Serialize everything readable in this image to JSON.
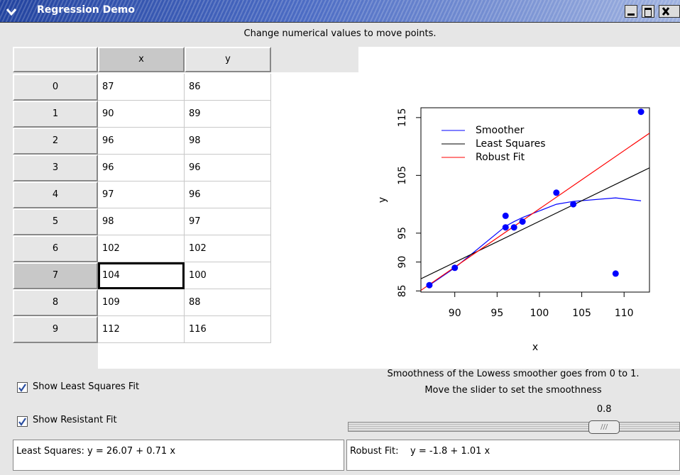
{
  "window_title": "Regression Demo",
  "instructions": "Change numerical values to move points.",
  "table": {
    "columns": [
      "x",
      "y"
    ],
    "rows": [
      [
        0,
        87,
        86
      ],
      [
        1,
        90,
        89
      ],
      [
        2,
        96,
        98
      ],
      [
        3,
        96,
        96
      ],
      [
        4,
        97,
        96
      ],
      [
        5,
        98,
        97
      ],
      [
        6,
        102,
        102
      ],
      [
        7,
        104,
        100
      ],
      [
        8,
        109,
        88
      ],
      [
        9,
        112,
        116
      ]
    ],
    "selected_cell": [
      7,
      1
    ]
  },
  "chart_data": {
    "type": "scatter",
    "xlabel": "x",
    "ylabel": "y",
    "point_color": "#0000ff",
    "xlim": [
      86,
      113
    ],
    "ylim": [
      84.8,
      116.7
    ],
    "xticks": [
      90,
      95,
      100,
      105,
      110
    ],
    "yticks": [
      85,
      90,
      95,
      105,
      115
    ],
    "legend": "upper left",
    "series": [
      {
        "name": "Smoother",
        "color": "#0000ff",
        "x": [
          87,
          90,
          96,
          97,
          98,
          102,
          104,
          109,
          112
        ],
        "values": [
          86,
          89,
          96.2,
          97,
          97.7,
          100,
          100.5,
          101.1,
          100.6
        ]
      },
      {
        "name": "Least Squares",
        "color": "#000000",
        "x": [
          86,
          113
        ],
        "values": [
          87.1,
          106.3
        ]
      },
      {
        "name": "Robust Fit",
        "color": "#ff0000",
        "x": [
          86,
          113
        ],
        "values": [
          85.1,
          112.3
        ]
      }
    ]
  },
  "controls": {
    "least_squares_checkbox": {
      "label": "Show Least Squares Fit",
      "checked": true
    },
    "resistant_checkbox": {
      "label": "Show Resistant Fit",
      "checked": true
    },
    "slider": {
      "help": [
        "Smoothness of the Lowess smoother goes from 0 to 1.",
        "Move the slider to set the smoothness"
      ],
      "value": 0.8,
      "range": [
        0,
        1
      ]
    }
  },
  "equations": {
    "least_squares": "Least Squares: y = 26.07 + 0.71 x",
    "robust": "Robust Fit:    y = -1.8 + 1.01 x"
  }
}
